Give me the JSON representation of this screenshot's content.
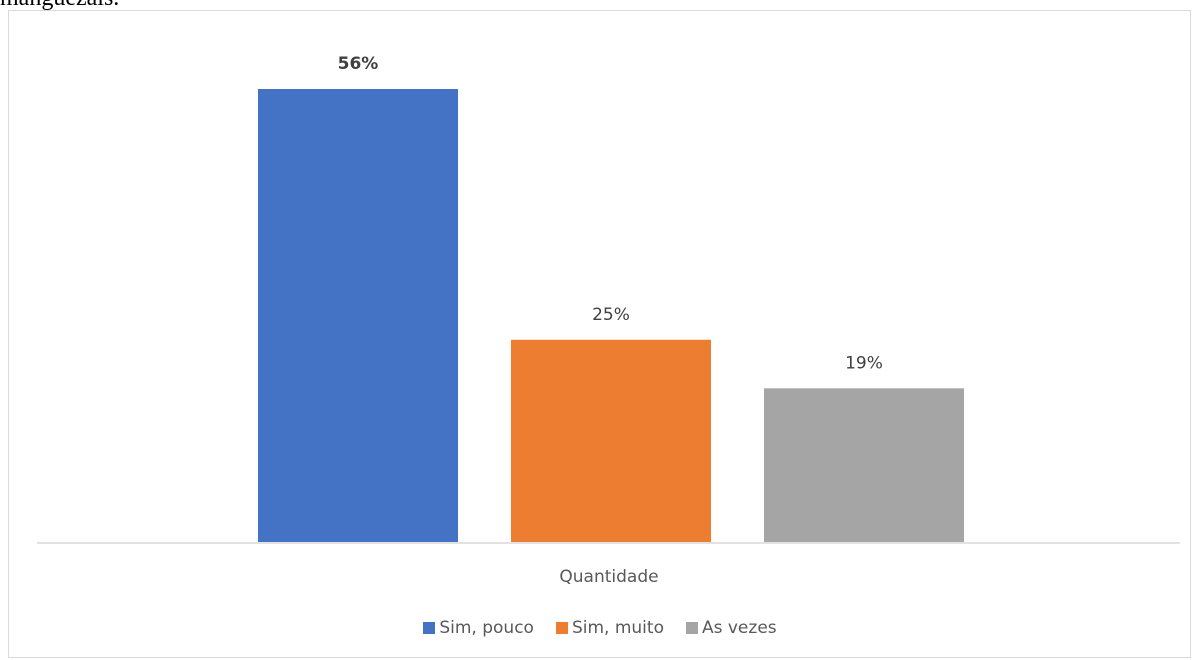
{
  "page_text": "manguezais.",
  "chart_data": {
    "type": "bar",
    "xlabel": "Quantidade",
    "series": [
      {
        "name": "Sim, pouco",
        "value": 56,
        "label": "56%",
        "color": "#4472C4",
        "bold_label": true
      },
      {
        "name": "Sim, muito",
        "value": 25,
        "label": "25%",
        "color": "#ED7D31",
        "bold_label": false
      },
      {
        "name": "As vezes",
        "value": 19,
        "label": "19%",
        "color": "#A5A5A5",
        "bold_label": false
      }
    ],
    "ylim": [
      0,
      60
    ],
    "grid": false,
    "legend_position": "bottom"
  }
}
